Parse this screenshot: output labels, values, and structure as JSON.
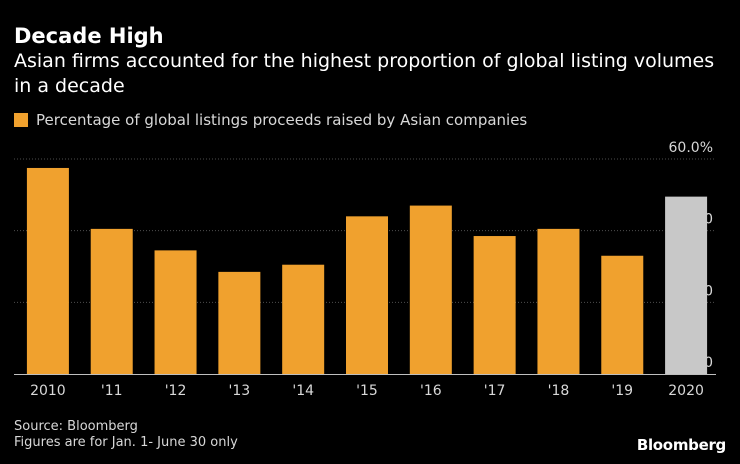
{
  "colors": {
    "background": "#000000",
    "bar": "#f0a12e",
    "highlight_bar": "#c8c8c8",
    "grid": "#4d4d4d",
    "axis": "#bfbfbf",
    "text": "#ffffff",
    "muted_text": "#d8d8d8"
  },
  "chart_data": {
    "type": "bar",
    "title": "Decade High",
    "subtitle": "Asian firms accounted for the highest proportion of global listing volumes in a decade",
    "categories": [
      "2010",
      "'11",
      "'12",
      "'13",
      "'14",
      "'15",
      "'16",
      "'17",
      "'18",
      "'19",
      "2020"
    ],
    "series": [
      {
        "name": "Percentage of global listings proceeds raised by Asian companies",
        "values": [
          57.5,
          40.5,
          34.5,
          28.5,
          30.5,
          44.0,
          47.0,
          38.5,
          40.5,
          33.0,
          49.5
        ]
      }
    ],
    "highlight_index": 10,
    "ylim": [
      0,
      60
    ],
    "yticks": [
      0,
      20,
      40,
      60
    ],
    "ytick_labels": [
      "0",
      "20.0",
      "40.0",
      "60.0%"
    ],
    "xlabel": "",
    "ylabel": "",
    "grid": true,
    "legend_position": "top-left"
  },
  "footer": {
    "source": "Source: Bloomberg",
    "note": "Figures are for Jan. 1- June 30 only",
    "brand": "Bloomberg"
  }
}
